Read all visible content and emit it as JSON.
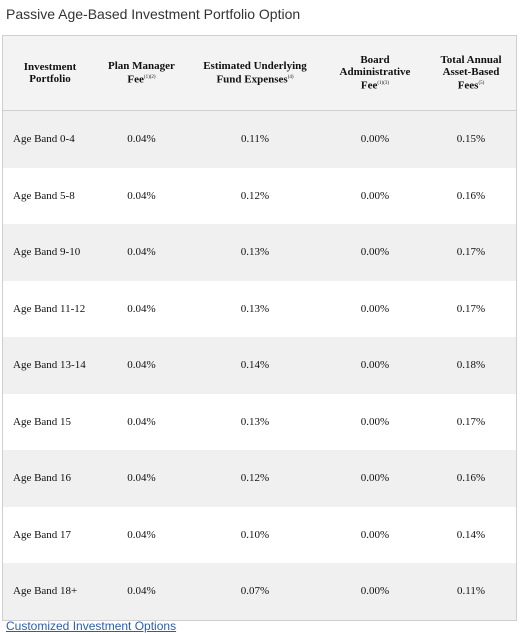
{
  "title": "Passive Age-Based Investment Portfolio Option",
  "table": {
    "header": [
      {
        "text": "Investment Portfolio"
      },
      {
        "text": "Plan Manager Fee",
        "note": "(1)(2)"
      },
      {
        "text": "Estimated Underlying Fund Expenses",
        "note": "(4)"
      },
      {
        "text": "Board Administrative Fee",
        "note": "(1)(3)"
      },
      {
        "text": "Total Annual Asset-Based Fees",
        "note": "(5)"
      }
    ],
    "rows": [
      [
        "Age Band 0-4",
        "0.04%",
        "0.11%",
        "0.00%",
        "0.15%"
      ],
      [
        "Age Band 5-8",
        "0.04%",
        "0.12%",
        "0.00%",
        "0.16%"
      ],
      [
        "Age Band 9-10",
        "0.04%",
        "0.13%",
        "0.00%",
        "0.17%"
      ],
      [
        "Age Band 11-12",
        "0.04%",
        "0.13%",
        "0.00%",
        "0.17%"
      ],
      [
        "Age Band 13-14",
        "0.04%",
        "0.14%",
        "0.00%",
        "0.18%"
      ],
      [
        "Age Band 15",
        "0.04%",
        "0.13%",
        "0.00%",
        "0.17%"
      ],
      [
        "Age Band 16",
        "0.04%",
        "0.12%",
        "0.00%",
        "0.16%"
      ],
      [
        "Age Band 17",
        "0.04%",
        "0.10%",
        "0.00%",
        "0.14%"
      ],
      [
        "Age Band 18+",
        "0.04%",
        "0.07%",
        "0.00%",
        "0.11%"
      ]
    ]
  },
  "footer_link": "Customized Investment Options"
}
